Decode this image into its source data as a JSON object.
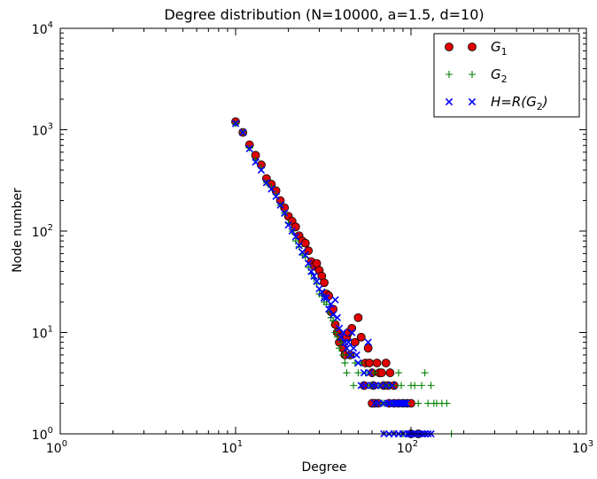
{
  "chart_data": {
    "type": "scatter",
    "title": "Degree distribution (N=10000, a=1.5, d=10)",
    "xlabel": "Degree",
    "ylabel": "Node number",
    "xscale": "log",
    "yscale": "log",
    "xlim": [
      1,
      1000
    ],
    "ylim": [
      1,
      10000
    ],
    "x_ticks": [
      {
        "value": 1,
        "base": "10",
        "exp": "0"
      },
      {
        "value": 10,
        "base": "10",
        "exp": "1"
      },
      {
        "value": 100,
        "base": "10",
        "exp": "2"
      },
      {
        "value": 1000,
        "base": "10",
        "exp": "3"
      }
    ],
    "y_ticks": [
      {
        "value": 1,
        "base": "10",
        "exp": "0"
      },
      {
        "value": 10,
        "base": "10",
        "exp": "1"
      },
      {
        "value": 100,
        "base": "10",
        "exp": "2"
      },
      {
        "value": 1000,
        "base": "10",
        "exp": "3"
      },
      {
        "value": 10000,
        "base": "10",
        "exp": "4"
      }
    ],
    "grid": false,
    "legend_position": "top-right",
    "series": [
      {
        "name": "G1",
        "legend_text": "G",
        "legend_sub": "1",
        "marker": "circle",
        "color": "#e00000",
        "edge_color": "#000000",
        "points": [
          [
            10,
            1200
          ],
          [
            11,
            940
          ],
          [
            12,
            710
          ],
          [
            13,
            560
          ],
          [
            14,
            450
          ],
          [
            15,
            330
          ],
          [
            16,
            290
          ],
          [
            17,
            250
          ],
          [
            18,
            200
          ],
          [
            19,
            170
          ],
          [
            20,
            140
          ],
          [
            21,
            125
          ],
          [
            22,
            110
          ],
          [
            23,
            90
          ],
          [
            24,
            80
          ],
          [
            25,
            76
          ],
          [
            26,
            64
          ],
          [
            27,
            50
          ],
          [
            28,
            45
          ],
          [
            29,
            48
          ],
          [
            30,
            41
          ],
          [
            31,
            36
          ],
          [
            32,
            31
          ],
          [
            33,
            24
          ],
          [
            34,
            23
          ],
          [
            35,
            16
          ],
          [
            36,
            17
          ],
          [
            37,
            12
          ],
          [
            38,
            10
          ],
          [
            39,
            8
          ],
          [
            40,
            9
          ],
          [
            41,
            7
          ],
          [
            42,
            6
          ],
          [
            43,
            9
          ],
          [
            44,
            10
          ],
          [
            45,
            6
          ],
          [
            46,
            11
          ],
          [
            48,
            8
          ],
          [
            50,
            14
          ],
          [
            52,
            9
          ],
          [
            54,
            3
          ],
          [
            55,
            5
          ],
          [
            57,
            7
          ],
          [
            58,
            5
          ],
          [
            60,
            4
          ],
          [
            61,
            3
          ],
          [
            62,
            2
          ],
          [
            64,
            5
          ],
          [
            66,
            4
          ],
          [
            68,
            4
          ],
          [
            70,
            3
          ],
          [
            72,
            5
          ],
          [
            74,
            3
          ],
          [
            76,
            4
          ],
          [
            80,
            2
          ],
          [
            85,
            2
          ],
          [
            90,
            2
          ],
          [
            95,
            2
          ],
          [
            100,
            2
          ],
          [
            60,
            2
          ],
          [
            65,
            2
          ],
          [
            75,
            2
          ],
          [
            80,
            3
          ],
          [
            100,
            1
          ],
          [
            110,
            1
          ]
        ]
      },
      {
        "name": "G2",
        "legend_text": "G",
        "legend_sub": "2",
        "marker": "plus",
        "color": "#008000",
        "points": [
          [
            10,
            1150
          ],
          [
            11,
            950
          ],
          [
            12,
            660
          ],
          [
            13,
            500
          ],
          [
            14,
            420
          ],
          [
            15,
            300
          ],
          [
            16,
            270
          ],
          [
            17,
            230
          ],
          [
            18,
            180
          ],
          [
            19,
            150
          ],
          [
            20,
            120
          ],
          [
            21,
            100
          ],
          [
            22,
            80
          ],
          [
            23,
            70
          ],
          [
            24,
            58
          ],
          [
            25,
            55
          ],
          [
            26,
            44
          ],
          [
            27,
            38
          ],
          [
            28,
            34
          ],
          [
            29,
            30
          ],
          [
            30,
            24
          ],
          [
            31,
            23
          ],
          [
            32,
            20
          ],
          [
            33,
            19
          ],
          [
            34,
            16
          ],
          [
            35,
            14
          ],
          [
            36,
            13
          ],
          [
            37,
            10
          ],
          [
            38,
            9
          ],
          [
            39,
            7
          ],
          [
            40,
            8
          ],
          [
            41,
            6
          ],
          [
            42,
            5
          ],
          [
            43,
            4
          ],
          [
            45,
            6
          ],
          [
            47,
            3
          ],
          [
            48,
            5
          ],
          [
            50,
            4
          ],
          [
            52,
            5
          ],
          [
            55,
            4
          ],
          [
            57,
            3
          ],
          [
            60,
            3
          ],
          [
            62,
            4
          ],
          [
            64,
            2
          ],
          [
            66,
            3
          ],
          [
            68,
            2
          ],
          [
            70,
            2
          ],
          [
            72,
            3
          ],
          [
            75,
            3
          ],
          [
            78,
            2
          ],
          [
            80,
            3
          ],
          [
            85,
            4
          ],
          [
            88,
            3
          ],
          [
            90,
            2
          ],
          [
            95,
            2
          ],
          [
            100,
            3
          ],
          [
            105,
            3
          ],
          [
            110,
            2
          ],
          [
            115,
            3
          ],
          [
            120,
            4
          ],
          [
            125,
            2
          ],
          [
            130,
            3
          ],
          [
            135,
            2
          ],
          [
            140,
            2
          ],
          [
            150,
            2
          ],
          [
            160,
            2
          ],
          [
            170,
            1
          ],
          [
            110,
            1
          ],
          [
            120,
            1
          ],
          [
            100,
            1
          ],
          [
            90,
            1
          ]
        ]
      },
      {
        "name": "H",
        "legend_text": "H=R(G",
        "legend_sub": "2",
        "legend_suffix": ")",
        "marker": "x",
        "color": "#0000ff",
        "points": [
          [
            10,
            1150
          ],
          [
            11,
            940
          ],
          [
            12,
            650
          ],
          [
            13,
            480
          ],
          [
            14,
            400
          ],
          [
            15,
            300
          ],
          [
            16,
            260
          ],
          [
            17,
            220
          ],
          [
            18,
            180
          ],
          [
            19,
            150
          ],
          [
            20,
            115
          ],
          [
            21,
            100
          ],
          [
            22,
            88
          ],
          [
            23,
            72
          ],
          [
            24,
            62
          ],
          [
            25,
            58
          ],
          [
            26,
            48
          ],
          [
            27,
            40
          ],
          [
            28,
            36
          ],
          [
            29,
            32
          ],
          [
            30,
            27
          ],
          [
            31,
            25
          ],
          [
            32,
            22
          ],
          [
            33,
            22
          ],
          [
            34,
            17
          ],
          [
            35,
            19
          ],
          [
            36,
            15
          ],
          [
            37,
            21
          ],
          [
            38,
            14
          ],
          [
            39,
            11
          ],
          [
            40,
            9
          ],
          [
            41,
            10
          ],
          [
            42,
            8
          ],
          [
            43,
            7
          ],
          [
            44,
            8
          ],
          [
            45,
            6
          ],
          [
            46,
            10
          ],
          [
            47,
            7
          ],
          [
            49,
            6
          ],
          [
            50,
            5
          ],
          [
            52,
            3
          ],
          [
            54,
            4
          ],
          [
            55,
            3
          ],
          [
            57,
            8
          ],
          [
            58,
            4
          ],
          [
            60,
            3
          ],
          [
            62,
            2
          ],
          [
            63,
            3
          ],
          [
            65,
            2
          ],
          [
            67,
            3
          ],
          [
            70,
            2
          ],
          [
            72,
            3
          ],
          [
            74,
            2
          ],
          [
            76,
            2
          ],
          [
            78,
            3
          ],
          [
            80,
            2
          ],
          [
            82,
            2
          ],
          [
            84,
            2
          ],
          [
            86,
            2
          ],
          [
            88,
            2
          ],
          [
            90,
            2
          ],
          [
            92,
            2
          ],
          [
            94,
            2
          ],
          [
            96,
            1
          ],
          [
            98,
            1
          ],
          [
            100,
            1
          ],
          [
            105,
            1
          ],
          [
            110,
            1
          ],
          [
            115,
            1
          ],
          [
            120,
            1
          ],
          [
            125,
            1
          ],
          [
            130,
            1
          ],
          [
            70,
            1
          ],
          [
            75,
            1
          ],
          [
            80,
            1
          ],
          [
            85,
            1
          ],
          [
            90,
            1
          ]
        ]
      }
    ]
  }
}
